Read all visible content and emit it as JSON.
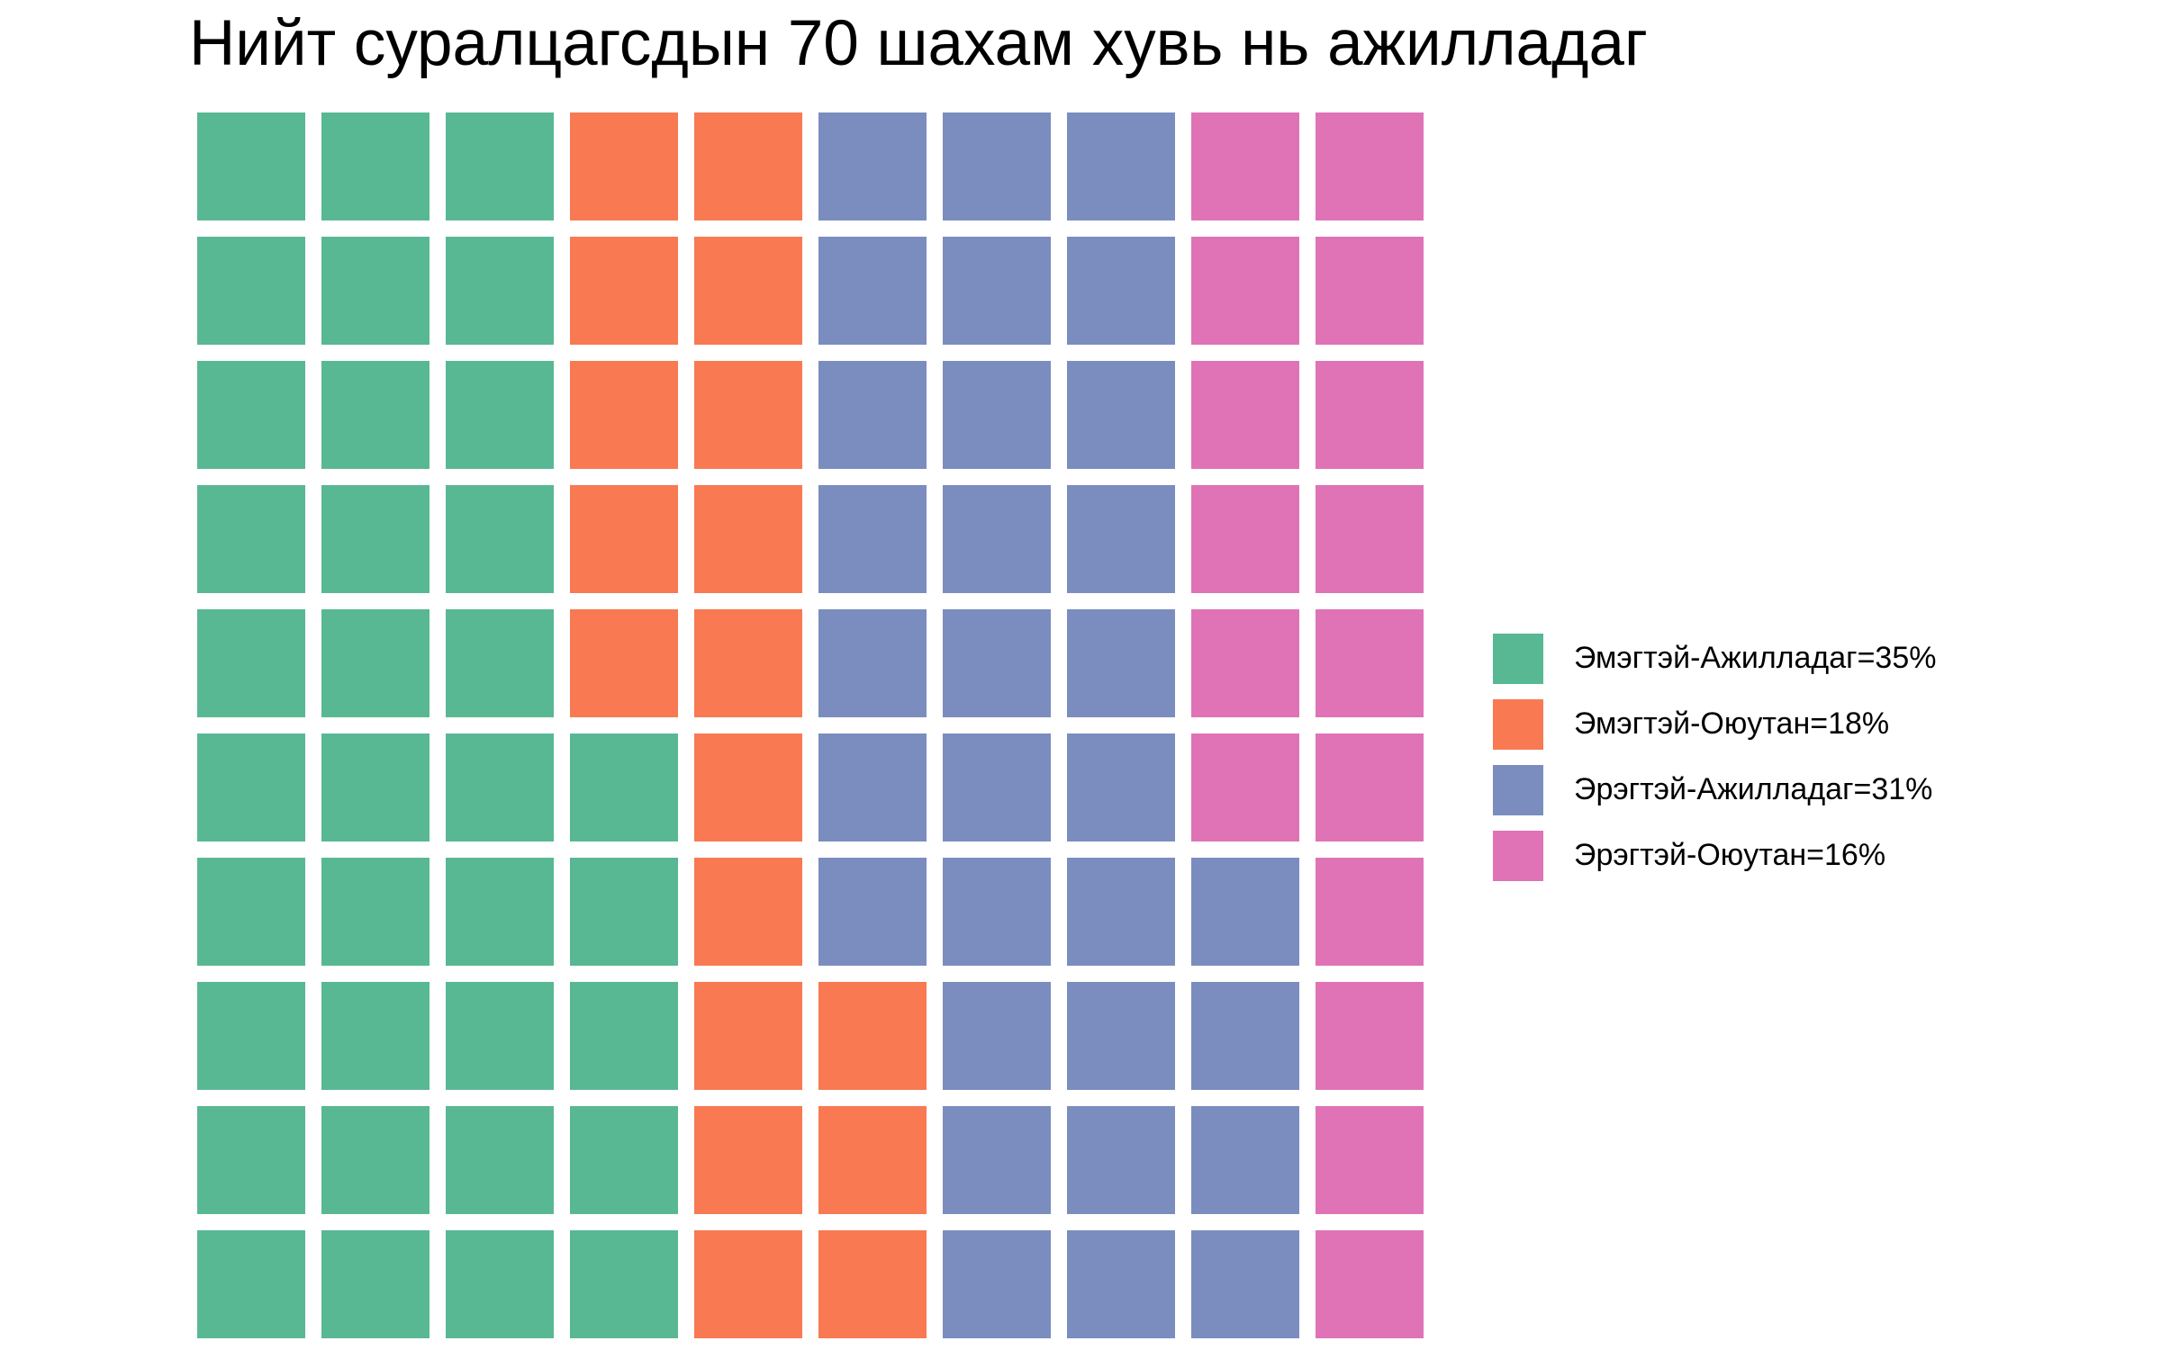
{
  "chart_data": {
    "type": "waffle",
    "title": "Нийт суралцагсдын 70 шахам хувь нь ажилладаг",
    "grid": {
      "rows": 10,
      "columns": 10
    },
    "fill_order": "column-major from bottom-left",
    "series": [
      {
        "name": "Эмэгтэй-Ажилладаг=35%",
        "category": "Эмэгтэй-Ажилладаг",
        "value": 35,
        "color": "#58b894"
      },
      {
        "name": "Эмэгтэй-Оюутан=18%",
        "category": "Эмэгтэй-Оюутан",
        "value": 18,
        "color": "#f87952"
      },
      {
        "name": "Эрэгтэй-Ажилладаг=31%",
        "category": "Эрэгтэй-Ажилладаг",
        "value": 31,
        "color": "#7b8dbf"
      },
      {
        "name": "Эрэгтэй-Оюутан=16%",
        "category": "Эрэгтэй-Оюутан",
        "value": 16,
        "color": "#df73b6"
      }
    ],
    "legend_position": "right"
  }
}
